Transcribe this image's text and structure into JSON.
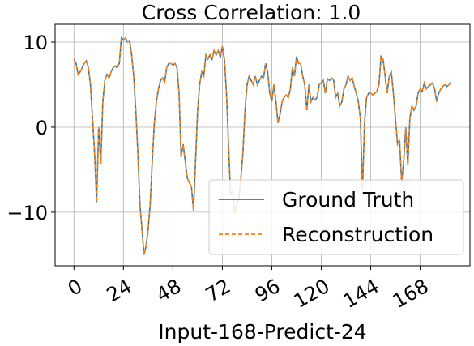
{
  "chart_data": {
    "type": "line",
    "title": "Cross Correlation: 1.0",
    "x_label": "Input-168-Predict-24",
    "x": [
      0,
      1,
      2,
      3,
      4,
      5,
      6,
      7,
      8,
      9,
      10,
      11,
      12,
      13,
      14,
      15,
      16,
      17,
      18,
      19,
      20,
      21,
      22,
      23,
      24,
      25,
      26,
      27,
      28,
      29,
      30,
      31,
      32,
      33,
      34,
      35,
      36,
      37,
      38,
      39,
      40,
      41,
      42,
      43,
      44,
      45,
      46,
      47,
      48,
      49,
      50,
      51,
      52,
      53,
      54,
      55,
      56,
      57,
      58,
      59,
      60,
      61,
      62,
      63,
      64,
      65,
      66,
      67,
      68,
      69,
      70,
      71,
      72,
      73,
      74,
      75,
      76,
      77,
      78,
      79,
      80,
      81,
      82,
      83,
      84,
      85,
      86,
      87,
      88,
      89,
      90,
      91,
      92,
      93,
      94,
      95,
      96,
      97,
      98,
      99,
      100,
      101,
      102,
      103,
      104,
      105,
      106,
      107,
      108,
      109,
      110,
      111,
      112,
      113,
      114,
      115,
      116,
      117,
      118,
      119,
      120,
      121,
      122,
      123,
      124,
      125,
      126,
      127,
      128,
      129,
      130,
      131,
      132,
      133,
      134,
      135,
      136,
      137,
      138,
      139,
      140,
      141,
      142,
      143,
      144,
      145,
      146,
      147,
      148,
      149,
      150,
      151,
      152,
      153,
      154,
      155,
      156,
      157,
      158,
      159,
      160,
      161,
      162,
      163,
      164,
      165,
      166,
      167,
      168,
      169,
      170,
      171,
      172,
      173,
      174,
      175,
      176,
      177,
      178,
      179,
      180,
      181,
      182,
      183
    ],
    "series": [
      {
        "name": "Ground Truth",
        "color": "#1f77b4",
        "dash": false,
        "values": [
          8,
          7.5,
          6.2,
          6.5,
          7,
          7.5,
          7.8,
          7,
          5,
          1,
          -3,
          -8.8,
          0,
          -4.3,
          3,
          5.5,
          6.2,
          5.8,
          6.5,
          7,
          7.2,
          7,
          7.5,
          10.5,
          10.3,
          10.5,
          10,
          10.2,
          8.5,
          6,
          2,
          -3,
          -9,
          -12,
          -15,
          -14,
          -12,
          -9,
          -4,
          0.5,
          3,
          4.5,
          5.5,
          5.8,
          5.3,
          7,
          7.5,
          7.5,
          7.3,
          7.5,
          7,
          4,
          -3.5,
          -2,
          -4,
          -6,
          -6.5,
          -7,
          -9.8,
          -4,
          2,
          5,
          6.5,
          6,
          8.5,
          8,
          8.5,
          8,
          9,
          8.5,
          9,
          8.2,
          9.5,
          8,
          4,
          -2,
          -8,
          -7.5,
          -10.2,
          -9,
          -8.5,
          -6,
          -3,
          2,
          5,
          6,
          5.5,
          5,
          6,
          5,
          5.5,
          6,
          5.8,
          7.5,
          6.5,
          4,
          3,
          5,
          3,
          0.5,
          1.5,
          3,
          3.5,
          3.8,
          3.5,
          4.5,
          7,
          6,
          8.3,
          7.5,
          7.5,
          6,
          5,
          2,
          5,
          3,
          3.5,
          3.2,
          3.5,
          5,
          5.2,
          5.5,
          4,
          5.7,
          5.5,
          5.8,
          5.5,
          3.5,
          4,
          2.5,
          3,
          4.5,
          5,
          6,
          5.5,
          5.8,
          4.8,
          4,
          3,
          1,
          -7.5,
          0.5,
          3.5,
          4,
          4,
          3.8,
          4,
          4.2,
          5,
          8.3,
          8,
          6,
          4,
          6,
          6.5,
          4,
          1,
          -2,
          -1.5,
          -6.5,
          -4,
          0,
          -4.5,
          1,
          2.5,
          2,
          2.5,
          4,
          4.5,
          4.2,
          5.2,
          4.5,
          4.8,
          5,
          5.2,
          4.5,
          3,
          4,
          4.5,
          4.8,
          5,
          4.8,
          5,
          5.3
        ]
      },
      {
        "name": "Reconstruction",
        "color": "#ff7f0e",
        "dash": true,
        "values": [
          8,
          7.5,
          6.2,
          6.5,
          7,
          7.5,
          7.8,
          7,
          5,
          1,
          -3,
          -8.8,
          0,
          -4.3,
          3,
          5.5,
          6.2,
          5.8,
          6.5,
          7,
          7.2,
          7,
          7.5,
          10.5,
          10.3,
          10.5,
          10,
          10.2,
          8.5,
          6,
          2,
          -3,
          -9,
          -12,
          -15,
          -14,
          -12,
          -9,
          -4,
          0.5,
          3,
          4.5,
          5.5,
          5.8,
          5.3,
          7,
          7.5,
          7.5,
          7.3,
          7.5,
          7,
          4,
          -3.5,
          -2,
          -4,
          -6,
          -6.5,
          -7,
          -9.8,
          -4,
          2,
          5,
          6.5,
          6,
          8.5,
          8,
          8.5,
          8,
          9,
          8.5,
          9,
          8.2,
          9.5,
          8,
          4,
          -2,
          -8,
          -7.5,
          -10.2,
          -9,
          -8.5,
          -6,
          -3,
          2,
          5,
          6,
          5.5,
          5,
          6,
          5,
          5.5,
          6,
          5.8,
          7.5,
          6.5,
          4,
          3,
          5,
          3,
          0.5,
          1.5,
          3,
          3.5,
          3.8,
          3.5,
          4.5,
          7,
          6,
          8.3,
          7.5,
          7.5,
          6,
          5,
          2,
          5,
          3,
          3.5,
          3.2,
          3.5,
          5,
          5.2,
          5.5,
          4,
          5.7,
          5.5,
          5.8,
          5.5,
          3.5,
          4,
          2.5,
          3,
          4.5,
          5,
          6,
          5.5,
          5.8,
          4.8,
          4,
          3,
          1,
          -7.5,
          0.5,
          3.5,
          4,
          4,
          3.8,
          4,
          4.2,
          5,
          8.3,
          8,
          6,
          4,
          6,
          6.5,
          4,
          1,
          -2,
          -1.5,
          -6.5,
          -4,
          0,
          -4.5,
          1,
          2.5,
          2,
          2.5,
          4,
          4.5,
          4.2,
          5.2,
          4.5,
          4.8,
          5,
          5.2,
          4.5,
          3,
          4,
          4.5,
          4.8,
          5,
          4.8,
          5,
          5.3
        ]
      }
    ],
    "xlim": [
      -9.15,
      192.15
    ],
    "xticks": [
      0,
      24,
      48,
      72,
      96,
      120,
      144,
      168
    ],
    "ylim": [
      -16.3,
      12.1
    ],
    "yticks": [
      {
        "value": -10,
        "label": "−10"
      },
      0,
      10
    ],
    "grid": true,
    "legend": "lower right"
  }
}
